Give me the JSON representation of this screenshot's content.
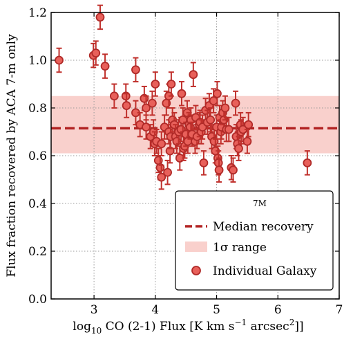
{
  "chart_data": {
    "type": "scatter",
    "xlabel_main": "log",
    "xlabel_sub": "10",
    "xlabel_rest_a": " CO (2-1) Flux [K km s",
    "xlabel_exp_a": "−1",
    "xlabel_rest_b": " arcsec",
    "xlabel_exp_b": "2",
    "xlabel_end": "]]",
    "ylabel": "Flux fraction recovered by ACA 7-m only",
    "xlim": [
      2.3,
      7.0
    ],
    "ylim": [
      0.0,
      1.2
    ],
    "xticks": [
      "3",
      "4",
      "5",
      "6",
      "7"
    ],
    "yticks": [
      "0.0",
      "0.2",
      "0.4",
      "0.6",
      "0.8",
      "1.0",
      "1.2"
    ],
    "grid": true,
    "median": 0.715,
    "sigma_range": [
      0.61,
      0.85
    ],
    "yerr": 0.05,
    "legend": {
      "title": "7M",
      "position": "bottom-right",
      "median_label": "Median recovery",
      "range_label_symbol": "1σ",
      "range_label_rest": " range",
      "point_label": "Individual Galaxy"
    },
    "colors": {
      "point_fill": "#e8605a",
      "point_edge": "#b02a28",
      "errorbar": "#c0302c",
      "median_line": "#b22222",
      "band": "#f9d0cc"
    },
    "points": [
      [
        2.43,
        1.0
      ],
      [
        2.99,
        1.02
      ],
      [
        3.03,
        1.03
      ],
      [
        3.1,
        1.18
      ],
      [
        3.18,
        0.975
      ],
      [
        3.33,
        0.85
      ],
      [
        3.52,
        0.85
      ],
      [
        3.53,
        0.81
      ],
      [
        3.68,
        0.96
      ],
      [
        3.68,
        0.78
      ],
      [
        3.75,
        0.73
      ],
      [
        3.85,
        0.72
      ],
      [
        3.82,
        0.84
      ],
      [
        3.85,
        0.8
      ],
      [
        3.92,
        0.68
      ],
      [
        3.95,
        0.82
      ],
      [
        3.97,
        0.7
      ],
      [
        3.99,
        0.65
      ],
      [
        4.0,
        0.9
      ],
      [
        4.02,
        0.66
      ],
      [
        4.05,
        0.58
      ],
      [
        4.08,
        0.55
      ],
      [
        4.1,
        0.51
      ],
      [
        4.1,
        0.65
      ],
      [
        4.15,
        0.72
      ],
      [
        4.18,
        0.82
      ],
      [
        4.22,
        0.85
      ],
      [
        4.22,
        0.7
      ],
      [
        4.2,
        0.53
      ],
      [
        4.24,
        0.62
      ],
      [
        4.25,
        0.68
      ],
      [
        4.26,
        0.9
      ],
      [
        4.28,
        0.75
      ],
      [
        4.31,
        0.73
      ],
      [
        4.33,
        0.68
      ],
      [
        4.35,
        0.66
      ],
      [
        4.38,
        0.7
      ],
      [
        4.4,
        0.59
      ],
      [
        4.42,
        0.71
      ],
      [
        4.43,
        0.86
      ],
      [
        4.45,
        0.75
      ],
      [
        4.46,
        0.63
      ],
      [
        4.48,
        0.64
      ],
      [
        4.5,
        0.69
      ],
      [
        4.52,
        0.78
      ],
      [
        4.53,
        0.66
      ],
      [
        4.55,
        0.73
      ],
      [
        4.57,
        0.72
      ],
      [
        4.58,
        0.75
      ],
      [
        4.6,
        0.69
      ],
      [
        4.62,
        0.94
      ],
      [
        4.65,
        0.66
      ],
      [
        4.66,
        0.76
      ],
      [
        4.68,
        0.68
      ],
      [
        4.72,
        0.73
      ],
      [
        4.73,
        0.74
      ],
      [
        4.75,
        0.7
      ],
      [
        4.77,
        0.72
      ],
      [
        4.79,
        0.57
      ],
      [
        4.82,
        0.79
      ],
      [
        4.85,
        0.74
      ],
      [
        4.88,
        0.81
      ],
      [
        4.9,
        0.75
      ],
      [
        4.92,
        0.68
      ],
      [
        4.95,
        0.83
      ],
      [
        4.96,
        0.66
      ],
      [
        4.98,
        0.62
      ],
      [
        5.0,
        0.72
      ],
      [
        5.01,
        0.86
      ],
      [
        5.02,
        0.59
      ],
      [
        5.03,
        0.57
      ],
      [
        5.04,
        0.54
      ],
      [
        5.05,
        0.76
      ],
      [
        5.07,
        0.7
      ],
      [
        5.08,
        0.72
      ],
      [
        5.1,
        0.78
      ],
      [
        5.12,
        0.75
      ],
      [
        5.14,
        0.8
      ],
      [
        5.16,
        0.71
      ],
      [
        5.2,
        0.71
      ],
      [
        5.24,
        0.55
      ],
      [
        5.27,
        0.54
      ],
      [
        5.31,
        0.82
      ],
      [
        5.32,
        0.68
      ],
      [
        5.34,
        0.65
      ],
      [
        5.36,
        0.63
      ],
      [
        5.39,
        0.73
      ],
      [
        5.4,
        0.7
      ],
      [
        5.43,
        0.71
      ],
      [
        5.5,
        0.66
      ],
      [
        5.52,
        0.73
      ],
      [
        6.48,
        0.57
      ]
    ]
  }
}
